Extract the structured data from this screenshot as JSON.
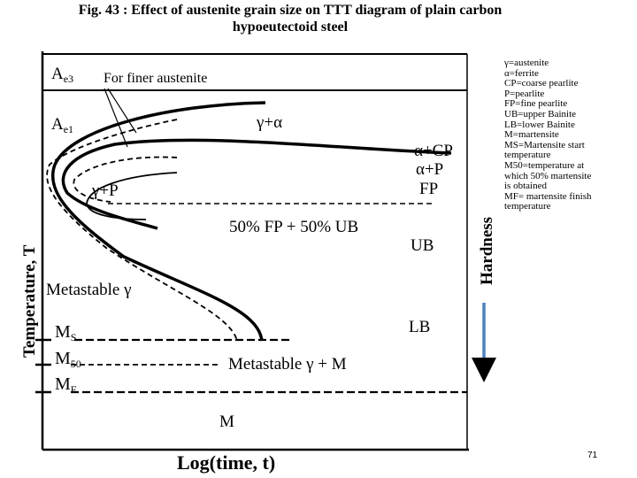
{
  "title_line1": "Fig. 43 : Effect of austenite grain size on TTT diagram of  plain carbon",
  "title_line2": "hypoeutectoid steel",
  "labels": {
    "ae3": "A",
    "ae3_sub": "e3",
    "ae1": "A",
    "ae1_sub": "e1",
    "finer": "For finer austenite",
    "gamma_alpha": "γ+α",
    "alpha_cp": "α+CP",
    "alpha_p": "α+P",
    "fp": "FP",
    "gamma_p": "γ+P",
    "fp_ub": "50% FP + 50% UB",
    "ub": "UB",
    "metastable": "Metastable γ",
    "lb": "LB",
    "ms": "M",
    "ms_sub": "S",
    "m50": "M",
    "m50_sub": "50",
    "mf": "M",
    "mf_sub": "F",
    "metastable_m": "Metastable  γ + M",
    "m": "M",
    "xlabel": "Log(time, t)",
    "ylabel": "Temperature, T",
    "hardness": "Hardness"
  },
  "legend": [
    "γ=austenite",
    "α=ferrite",
    "CP=coarse pearlite",
    "P=pearlite",
    "FP=fine pearlite",
    "UB=upper Bainite",
    "LB=lower Bainite",
    "M=martensite",
    "MS=Martensite start",
    "temperature",
    "M50=temperature at",
    "which 50% martensite",
    "is obtained",
    "MF= martensite finish",
    "temperature"
  ],
  "page_number": "71",
  "colors": {
    "hardness_arrow": "#4f81bd",
    "ink": "#000000"
  }
}
